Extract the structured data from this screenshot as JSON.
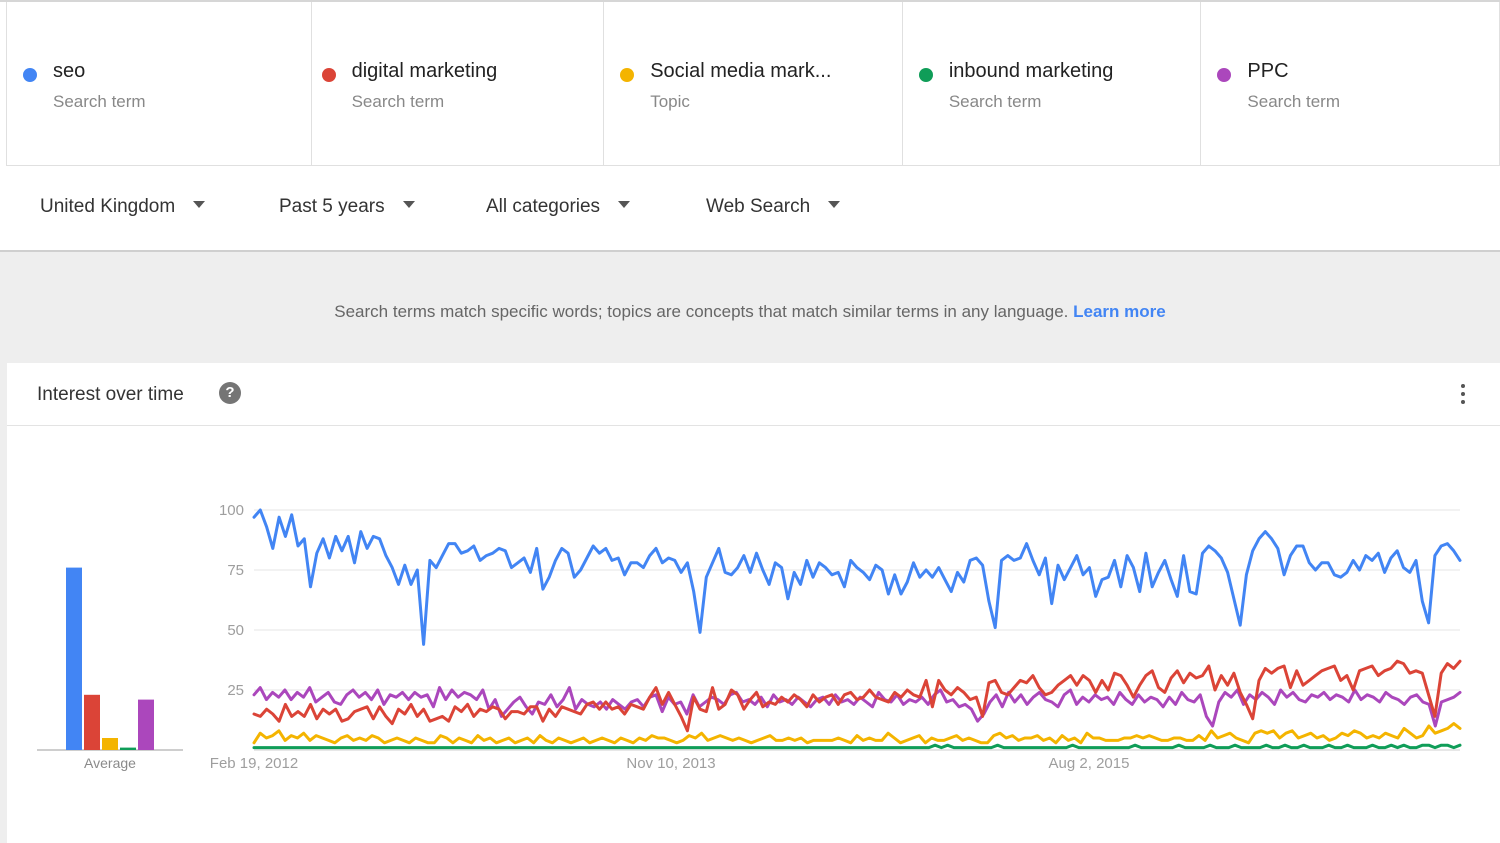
{
  "terms": [
    {
      "name": "seo",
      "type": "Search term",
      "color": "#4285f4"
    },
    {
      "name": "digital marketing",
      "type": "Search term",
      "color": "#db4437"
    },
    {
      "name": "Social media mark...",
      "type": "Topic",
      "color": "#f4b400"
    },
    {
      "name": "inbound marketing",
      "type": "Search term",
      "color": "#0f9d58"
    },
    {
      "name": "PPC",
      "type": "Search term",
      "color": "#ab47bc"
    }
  ],
  "filters": {
    "region": "United Kingdom",
    "period": "Past 5 years",
    "category": "All categories",
    "search_type": "Web Search"
  },
  "info": {
    "text": "Search terms match specific words; topics are concepts that match similar terms in any language.",
    "learn_more": "Learn more"
  },
  "card": {
    "title": "Interest over time",
    "help_icon": "?",
    "menu_icon": "more-vert-icon"
  },
  "chart_data": {
    "type": "line",
    "y_ticks": [
      25,
      50,
      75,
      100
    ],
    "ylim": [
      0,
      100
    ],
    "x_tick_labels": [
      "Feb 19, 2012",
      "Nov 10, 2013",
      "Aug 2, 2015"
    ],
    "average_label": "Average",
    "averages": [
      {
        "name": "seo",
        "value": 76,
        "color": "#4285f4"
      },
      {
        "name": "digital marketing",
        "value": 23,
        "color": "#db4437"
      },
      {
        "name": "Social media mark...",
        "value": 5,
        "color": "#f4b400"
      },
      {
        "name": "inbound marketing",
        "value": 1,
        "color": "#0f9d58"
      },
      {
        "name": "PPC",
        "value": 21,
        "color": "#ab47bc"
      }
    ],
    "series": [
      {
        "name": "seo",
        "color": "#4285f4",
        "values": [
          97,
          100,
          93,
          84,
          97,
          89,
          98,
          85,
          88,
          68,
          82,
          88,
          80,
          89,
          83,
          89,
          78,
          91,
          84,
          89,
          88,
          81,
          76,
          69,
          77,
          69,
          75,
          44,
          79,
          76,
          81,
          86,
          86,
          82,
          83,
          85,
          79,
          81,
          82,
          84,
          83,
          76,
          78,
          80,
          74,
          84,
          67,
          72,
          79,
          84,
          82,
          72,
          75,
          80,
          85,
          82,
          84,
          79,
          80,
          73,
          78,
          78,
          76,
          81,
          84,
          78,
          80,
          79,
          74,
          78,
          66,
          49,
          72,
          78,
          84,
          74,
          73,
          76,
          81,
          74,
          82,
          75,
          69,
          78,
          76,
          63,
          74,
          69,
          79,
          72,
          78,
          76,
          73,
          74,
          68,
          79,
          76,
          74,
          71,
          77,
          75,
          65,
          73,
          65,
          70,
          78,
          72,
          75,
          72,
          76,
          71,
          66,
          74,
          70,
          79,
          80,
          77,
          62,
          51,
          79,
          81,
          79,
          80,
          86,
          79,
          73,
          80,
          61,
          77,
          71,
          76,
          81,
          73,
          76,
          64,
          71,
          72,
          79,
          68,
          81,
          76,
          66,
          82,
          68,
          74,
          79,
          71,
          64,
          81,
          66,
          65,
          82,
          85,
          83,
          80,
          74,
          63,
          52,
          73,
          83,
          88,
          91,
          88,
          84,
          73,
          81,
          85,
          85,
          78,
          75,
          78,
          78,
          73,
          72,
          74,
          79,
          75,
          81,
          79,
          82,
          74,
          80,
          83,
          76,
          74,
          79,
          62,
          53,
          81,
          85,
          86,
          83,
          79
        ]
      },
      {
        "name": "digital marketing",
        "color": "#db4437",
        "values": [
          15,
          14,
          17,
          15,
          12,
          19,
          14,
          16,
          14,
          19,
          13,
          17,
          15,
          17,
          12,
          13,
          16,
          17,
          18,
          13,
          18,
          14,
          11,
          17,
          15,
          19,
          14,
          17,
          12,
          13,
          14,
          12,
          18,
          16,
          19,
          14,
          17,
          16,
          18,
          17,
          13,
          16,
          16,
          15,
          18,
          18,
          12,
          17,
          14,
          18,
          17,
          16,
          15,
          19,
          20,
          17,
          20,
          17,
          18,
          15,
          19,
          18,
          17,
          22,
          26,
          19,
          24,
          19,
          14,
          8,
          22,
          17,
          16,
          26,
          17,
          19,
          25,
          23,
          17,
          21,
          24,
          18,
          20,
          19,
          22,
          20,
          23,
          21,
          18,
          23,
          20,
          22,
          23,
          19,
          23,
          24,
          21,
          22,
          25,
          22,
          21,
          20,
          24,
          22,
          25,
          23,
          22,
          29,
          18,
          29,
          25,
          23,
          26,
          24,
          21,
          22,
          14,
          28,
          29,
          24,
          23,
          26,
          29,
          28,
          31,
          26,
          23,
          24,
          27,
          29,
          31,
          27,
          31,
          29,
          24,
          29,
          25,
          32,
          31,
          27,
          22,
          27,
          31,
          33,
          26,
          24,
          30,
          33,
          28,
          32,
          30,
          31,
          35,
          25,
          31,
          27,
          32,
          24,
          19,
          13,
          29,
          34,
          32,
          34,
          35,
          26,
          33,
          27,
          29,
          31,
          33,
          34,
          35,
          29,
          31,
          25,
          33,
          34,
          35,
          31,
          33,
          34,
          37,
          36,
          32,
          33,
          32,
          23,
          14,
          32,
          36,
          34,
          37
        ]
      },
      {
        "name": "Social media mark...",
        "color": "#f4b400",
        "values": [
          3,
          7,
          5,
          6,
          8,
          4,
          6,
          5,
          7,
          4,
          6,
          5,
          4,
          3,
          5,
          6,
          4,
          5,
          4,
          6,
          5,
          3,
          4,
          5,
          4,
          3,
          5,
          4,
          3,
          3,
          6,
          5,
          3,
          5,
          4,
          3,
          6,
          4,
          5,
          3,
          4,
          5,
          3,
          4,
          5,
          3,
          6,
          4,
          3,
          5,
          4,
          3,
          4,
          5,
          3,
          4,
          5,
          4,
          3,
          5,
          4,
          3,
          5,
          4,
          6,
          5,
          5,
          4,
          3,
          4,
          6,
          5,
          7,
          4,
          5,
          6,
          5,
          4,
          5,
          4,
          3,
          4,
          5,
          6,
          4,
          4,
          5,
          4,
          5,
          3,
          4,
          4,
          4,
          4,
          5,
          4,
          3,
          6,
          4,
          5,
          4,
          4,
          7,
          5,
          3,
          4,
          5,
          6,
          3,
          5,
          4,
          4,
          5,
          6,
          4,
          5,
          4,
          3,
          3,
          6,
          7,
          5,
          6,
          4,
          5,
          5,
          6,
          4,
          5,
          3,
          6,
          4,
          5,
          3,
          7,
          5,
          5,
          4,
          4,
          4,
          5,
          5,
          6,
          5,
          6,
          5,
          4,
          4,
          5,
          5,
          4,
          4,
          6,
          4,
          8,
          5,
          6,
          7,
          5,
          4,
          3,
          7,
          8,
          7,
          8,
          5,
          7,
          8,
          5,
          6,
          7,
          5,
          6,
          4,
          5,
          7,
          6,
          8,
          7,
          5,
          6,
          5,
          7,
          6,
          5,
          9,
          7,
          5,
          6,
          10,
          7,
          8,
          9,
          11,
          9
        ]
      },
      {
        "name": "inbound marketing",
        "color": "#0f9d58",
        "values": [
          1,
          1,
          1,
          1,
          1,
          1,
          1,
          1,
          1,
          1,
          1,
          1,
          1,
          1,
          1,
          1,
          1,
          1,
          1,
          1,
          1,
          1,
          1,
          1,
          1,
          1,
          1,
          1,
          1,
          1,
          1,
          1,
          1,
          1,
          1,
          1,
          1,
          1,
          1,
          1,
          1,
          1,
          1,
          1,
          1,
          1,
          1,
          1,
          1,
          1,
          1,
          1,
          1,
          1,
          1,
          1,
          1,
          1,
          1,
          1,
          1,
          1,
          1,
          1,
          1,
          1,
          1,
          1,
          1,
          1,
          1,
          1,
          1,
          1,
          1,
          1,
          1,
          1,
          1,
          1,
          1,
          1,
          1,
          1,
          1,
          1,
          1,
          1,
          1,
          1,
          1,
          1,
          1,
          1,
          1,
          1,
          1,
          1,
          1,
          1,
          1,
          1,
          1,
          1,
          1,
          1,
          1,
          1,
          1,
          2,
          1,
          2,
          1,
          1,
          1,
          1,
          1,
          1,
          1,
          2,
          1,
          1,
          1,
          1,
          1,
          1,
          1,
          1,
          1,
          1,
          1,
          2,
          1,
          1,
          1,
          1,
          1,
          1,
          1,
          1,
          1,
          2,
          1,
          1,
          1,
          1,
          1,
          1,
          2,
          1,
          1,
          1,
          1,
          2,
          1,
          1,
          1,
          2,
          1,
          1,
          1,
          1,
          2,
          1,
          1,
          2,
          1,
          1,
          2,
          1,
          1,
          1,
          2,
          1,
          1,
          2,
          1,
          1,
          1,
          2,
          1,
          1,
          2,
          1,
          2,
          1,
          1,
          2,
          2,
          1,
          2,
          2,
          1,
          2
        ]
      },
      {
        "name": "PPC",
        "color": "#ab47bc",
        "values": [
          23,
          26,
          21,
          24,
          22,
          25,
          21,
          24,
          22,
          26,
          20,
          22,
          24,
          20,
          19,
          23,
          25,
          22,
          24,
          21,
          25,
          19,
          23,
          22,
          24,
          21,
          24,
          22,
          23,
          18,
          26,
          21,
          25,
          22,
          24,
          23,
          21,
          25,
          17,
          21,
          14,
          17,
          20,
          22,
          18,
          15,
          20,
          19,
          23,
          18,
          21,
          26,
          17,
          21,
          19,
          18,
          20,
          17,
          21,
          19,
          17,
          20,
          21,
          18,
          22,
          23,
          16,
          22,
          19,
          20,
          15,
          23,
          18,
          20,
          22,
          21,
          19,
          23,
          24,
          20,
          21,
          19,
          22,
          18,
          23,
          20,
          21,
          19,
          22,
          20,
          18,
          21,
          22,
          19,
          23,
          20,
          21,
          19,
          22,
          20,
          18,
          24,
          21,
          20,
          23,
          19,
          21,
          20,
          22,
          19,
          23,
          25,
          20,
          21,
          18,
          19,
          17,
          12,
          15,
          20,
          23,
          18,
          24,
          20,
          23,
          19,
          22,
          24,
          21,
          20,
          18,
          23,
          25,
          19,
          22,
          20,
          23,
          21,
          22,
          19,
          24,
          21,
          19,
          23,
          20,
          22,
          21,
          18,
          22,
          19,
          24,
          21,
          20,
          23,
          14,
          10,
          20,
          24,
          22,
          25,
          19,
          23,
          21,
          24,
          22,
          19,
          25,
          22,
          24,
          21,
          20,
          23,
          22,
          24,
          21,
          23,
          22,
          20,
          25,
          21,
          23,
          22,
          20,
          24,
          22,
          21,
          19,
          22,
          23,
          20,
          19,
          10,
          20,
          21,
          22,
          24
        ]
      }
    ]
  }
}
